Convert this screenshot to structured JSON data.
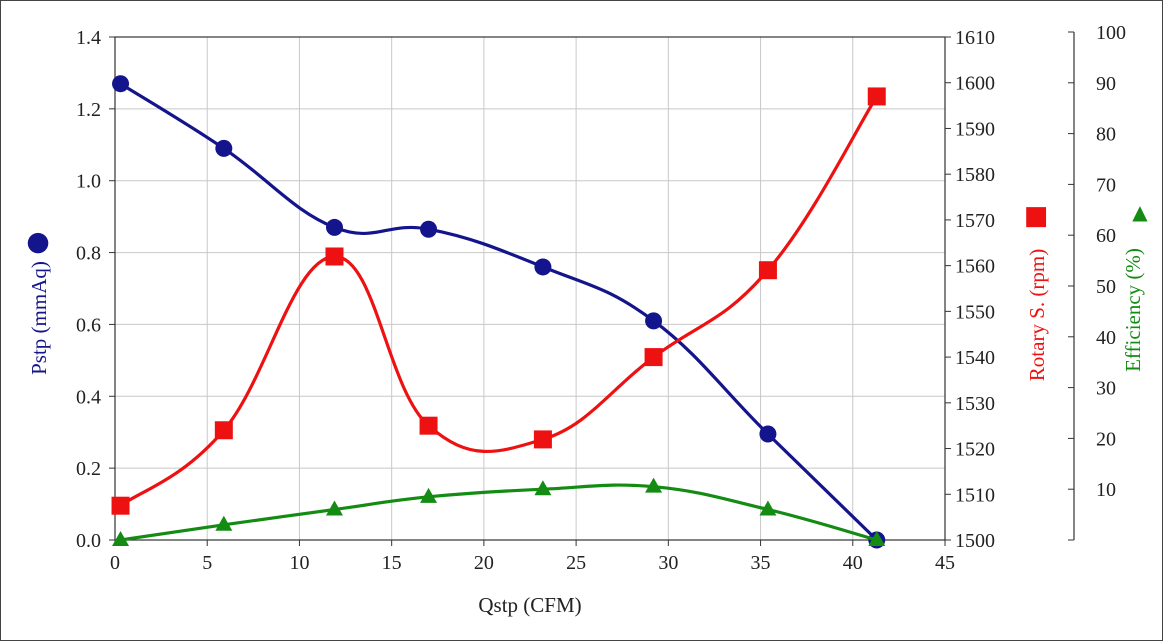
{
  "chart_data": {
    "type": "line",
    "xlabel": "Qstp (CFM)",
    "xlim": [
      0,
      45
    ],
    "xticks": [
      0,
      5,
      10,
      15,
      20,
      25,
      30,
      35,
      40,
      45
    ],
    "grid": true,
    "axes": {
      "left": {
        "label": "Pstp (mmAq)",
        "marker_glyph": "●",
        "color": "#14148c",
        "ylim": [
          0,
          1.4
        ],
        "ticks": [
          "0.0",
          "0.2",
          "0.4",
          "0.6",
          "0.8",
          "1.0",
          "1.2",
          "1.4"
        ]
      },
      "right1": {
        "label": "Rotary S. (rpm)",
        "marker_glyph": "■",
        "color": "#ee1111",
        "ylim": [
          1500,
          1610
        ],
        "ticks": [
          "1500",
          "1510",
          "1520",
          "1530",
          "1540",
          "1550",
          "1560",
          "1570",
          "1580",
          "1590",
          "1600",
          "1610"
        ]
      },
      "right2": {
        "label": "Efficiency (%)",
        "marker_glyph": "▲",
        "color": "#148c14",
        "ylim": [
          0,
          100
        ],
        "ticks": [
          "10",
          "20",
          "30",
          "40",
          "50",
          "60",
          "70",
          "80",
          "90",
          "100"
        ]
      }
    },
    "series": [
      {
        "axis": "left",
        "marker": "circle",
        "color": "#14148c",
        "x": [
          0.3,
          5.9,
          11.9,
          17.0,
          23.2,
          29.2,
          35.4,
          41.3
        ],
        "values": [
          1.27,
          1.09,
          0.87,
          0.865,
          0.76,
          0.61,
          0.295,
          0.0
        ]
      },
      {
        "axis": "right1",
        "marker": "square",
        "color": "#ee1111",
        "x": [
          0.3,
          5.9,
          11.9,
          17.0,
          23.2,
          29.2,
          35.4,
          41.3
        ],
        "values": [
          1507.5,
          1524,
          1562,
          1525,
          1522,
          1540,
          1559,
          1597
        ]
      },
      {
        "axis": "right2",
        "marker": "triangle",
        "color": "#148c14",
        "x": [
          0.3,
          5.9,
          11.9,
          17.0,
          23.2,
          29.2,
          35.4,
          41.3
        ],
        "values": [
          0,
          3,
          6,
          8.5,
          10,
          10.5,
          6,
          0
        ]
      }
    ]
  }
}
